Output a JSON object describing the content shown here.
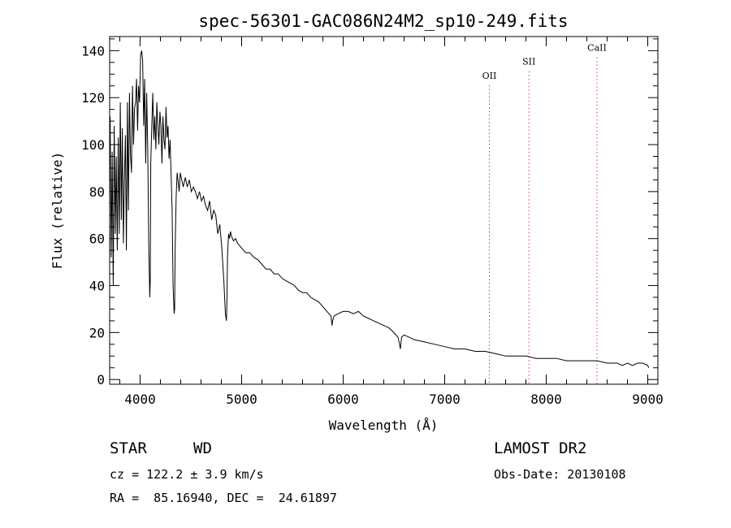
{
  "chart_data": {
    "type": "line",
    "title": "spec-56301-GAC086N24M2_sp10-249.fits",
    "xlabel": "Wavelength (Å)",
    "ylabel": "Flux (relative)",
    "xlim": [
      3700,
      9100
    ],
    "ylim": [
      -2,
      146
    ],
    "xticks": [
      4000,
      5000,
      6000,
      7000,
      8000,
      9000
    ],
    "xtick_labels": [
      "4000",
      "5000",
      "6000",
      "7000",
      "8000",
      "9000"
    ],
    "yticks": [
      0,
      20,
      40,
      60,
      80,
      100,
      120,
      140
    ],
    "ytick_labels": [
      "0",
      "20",
      "40",
      "60",
      "80",
      "100",
      "120",
      "140"
    ],
    "grid": false,
    "lines": [
      {
        "label": "OII",
        "x": 7440,
        "label_y": 128
      },
      {
        "label": "SII",
        "x": 7830,
        "label_y": 134
      },
      {
        "label": "CaII",
        "x": 8500,
        "label_y": 140
      }
    ],
    "series": [
      {
        "x": [
          3705,
          3715,
          3725,
          3735,
          3745,
          3755,
          3765,
          3775,
          3785,
          3795,
          3805,
          3815,
          3825,
          3835,
          3845,
          3855,
          3865,
          3875,
          3885,
          3895,
          3905,
          3915,
          3925,
          3935,
          3945,
          3955,
          3965,
          3975,
          3985,
          3995,
          4005,
          4015,
          4025,
          4035,
          4045,
          4055,
          4065,
          4075,
          4085,
          4095,
          4100,
          4105,
          4115,
          4125,
          4135,
          4145,
          4155,
          4165,
          4175,
          4185,
          4195,
          4205,
          4215,
          4225,
          4235,
          4245,
          4255,
          4265,
          4275,
          4285,
          4295,
          4305,
          4315,
          4325,
          4335,
          4340,
          4345,
          4355,
          4365,
          4375,
          4385,
          4395,
          4405,
          4425,
          4445,
          4465,
          4485,
          4505,
          4525,
          4545,
          4565,
          4585,
          4605,
          4625,
          4645,
          4665,
          4685,
          4705,
          4725,
          4745,
          4765,
          4785,
          4805,
          4825,
          4840,
          4850,
          4855,
          4861,
          4866,
          4872,
          4880,
          4890,
          4900,
          4920,
          4940,
          4960,
          4980,
          5000,
          5040,
          5080,
          5120,
          5160,
          5200,
          5240,
          5280,
          5320,
          5360,
          5400,
          5440,
          5480,
          5520,
          5560,
          5600,
          5640,
          5680,
          5720,
          5760,
          5800,
          5840,
          5880,
          5890,
          5896,
          5910,
          5950,
          6000,
          6050,
          6100,
          6150,
          6200,
          6250,
          6300,
          6350,
          6400,
          6450,
          6500,
          6540,
          6555,
          6563,
          6575,
          6600,
          6650,
          6700,
          6800,
          6900,
          7000,
          7100,
          7200,
          7300,
          7400,
          7500,
          7600,
          7700,
          7800,
          7900,
          8000,
          8100,
          8200,
          8300,
          8400,
          8500,
          8600,
          8700,
          8750,
          8800,
          8850,
          8900,
          8950,
          9000,
          9010
        ],
        "y": [
          112,
          52,
          97,
          40,
          108,
          62,
          95,
          55,
          103,
          62,
          118,
          68,
          107,
          58,
          85,
          104,
          55,
          118,
          72,
          122,
          96,
          88,
          125,
          100,
          115,
          118,
          128,
          106,
          125,
          118,
          138,
          140,
          136,
          108,
          128,
          92,
          122,
          98,
          58,
          35,
          42,
          92,
          108,
          122,
          102,
          112,
          98,
          118,
          108,
          100,
          114,
          108,
          92,
          112,
          102,
          98,
          116,
          103,
          108,
          94,
          102,
          88,
          72,
          40,
          28,
          30,
          55,
          78,
          88,
          84,
          80,
          88,
          86,
          82,
          86,
          82,
          85,
          80,
          82,
          80,
          77,
          80,
          76,
          78,
          74,
          72,
          76,
          68,
          72,
          70,
          62,
          66,
          56,
          42,
          28,
          25,
          34,
          52,
          58,
          62,
          60,
          63,
          61,
          59,
          60,
          58,
          57,
          56,
          54,
          54,
          52,
          51,
          49,
          47,
          47,
          45,
          45,
          43,
          42,
          41,
          40,
          38,
          37,
          37,
          35,
          34,
          33,
          31,
          29,
          27,
          23,
          25,
          27,
          28,
          29,
          29,
          28,
          29,
          27,
          26,
          25,
          24,
          23,
          22,
          20,
          18,
          15,
          13,
          18,
          19,
          18,
          17,
          16,
          15,
          14,
          13,
          13,
          12,
          12,
          11,
          10,
          10,
          10,
          9,
          9,
          9,
          8,
          8,
          8,
          8,
          7,
          7,
          6,
          7,
          6,
          7,
          7,
          6,
          5
        ]
      }
    ]
  },
  "info": {
    "class_label": "STAR",
    "subclass": "WD",
    "survey": "LAMOST DR2",
    "cz": "cz = 122.2 ± 3.9 km/s",
    "obs_date": "Obs-Date: 20130108",
    "radec": "RA =  85.16940, DEC =  24.61897"
  }
}
